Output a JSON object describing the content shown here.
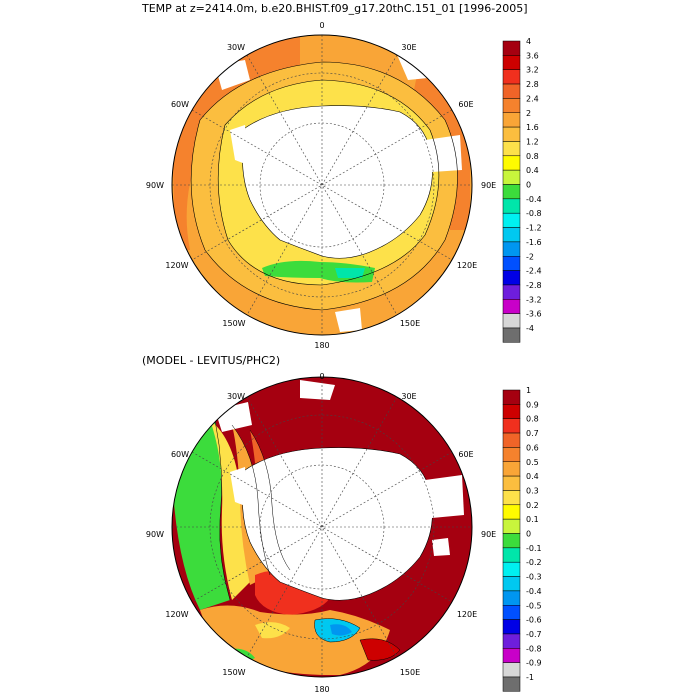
{
  "top_panel": {
    "title": "TEMP at z=2414.0m, b.e20.BHIST.f09_g17.20thC.151_01 [1996-2005]",
    "colorbar": {
      "labels": [
        "4",
        "3.6",
        "3.2",
        "2.8",
        "2.4",
        "2",
        "1.6",
        "1.2",
        "0.8",
        "0.4",
        "0",
        "-0.4",
        "-0.8",
        "-1.2",
        "-1.6",
        "-2",
        "-2.4",
        "-2.8",
        "-3.2",
        "-3.6",
        "-4"
      ],
      "colors": [
        "#a50010",
        "#cd0000",
        "#f0301e",
        "#f06428",
        "#f5822d",
        "#f9a537",
        "#fbbe3f",
        "#fde14a",
        "#fffb00",
        "#c8f53c",
        "#3cdc3c",
        "#00e6aa",
        "#00f0f0",
        "#00c8f0",
        "#0096f0",
        "#0050ff",
        "#0000e6",
        "#6e1edc",
        "#c800c8",
        "#d7d7d7",
        "#6e6e6e"
      ]
    },
    "labels": {
      "top": "0",
      "bottom": "180",
      "left": "90W",
      "right": "90E",
      "nw": "30W",
      "ne": "30E",
      "wnw": "60W",
      "ene": "60E",
      "wsw": "120W",
      "ese": "120E",
      "ssw": "150W",
      "sse": "150E"
    }
  },
  "bottom_panel": {
    "title": "(MODEL - LEVITUS/PHC2)",
    "colorbar": {
      "labels": [
        "1",
        "0.9",
        "0.8",
        "0.7",
        "0.6",
        "0.5",
        "0.4",
        "0.3",
        "0.2",
        "0.1",
        "0",
        "-0.1",
        "-0.2",
        "-0.3",
        "-0.4",
        "-0.5",
        "-0.6",
        "-0.7",
        "-0.8",
        "-0.9",
        "-1"
      ],
      "colors": [
        "#a50010",
        "#cd0000",
        "#f0301e",
        "#f06428",
        "#f5822d",
        "#f9a537",
        "#fbbe3f",
        "#fde14a",
        "#fffb00",
        "#c8f53c",
        "#3cdc3c",
        "#00e6aa",
        "#00f0f0",
        "#00c8f0",
        "#0096f0",
        "#0050ff",
        "#0000e6",
        "#6e1edc",
        "#c800c8",
        "#d7d7d7",
        "#6e6e6e"
      ]
    },
    "labels": {
      "top": "0",
      "bottom": "180",
      "left": "90W",
      "right": "90E",
      "nw": "30W",
      "ne": "30E",
      "wnw": "60W",
      "ene": "60E",
      "wsw": "120W",
      "ese": "120E",
      "ssw": "150W",
      "sse": "150E"
    }
  }
}
